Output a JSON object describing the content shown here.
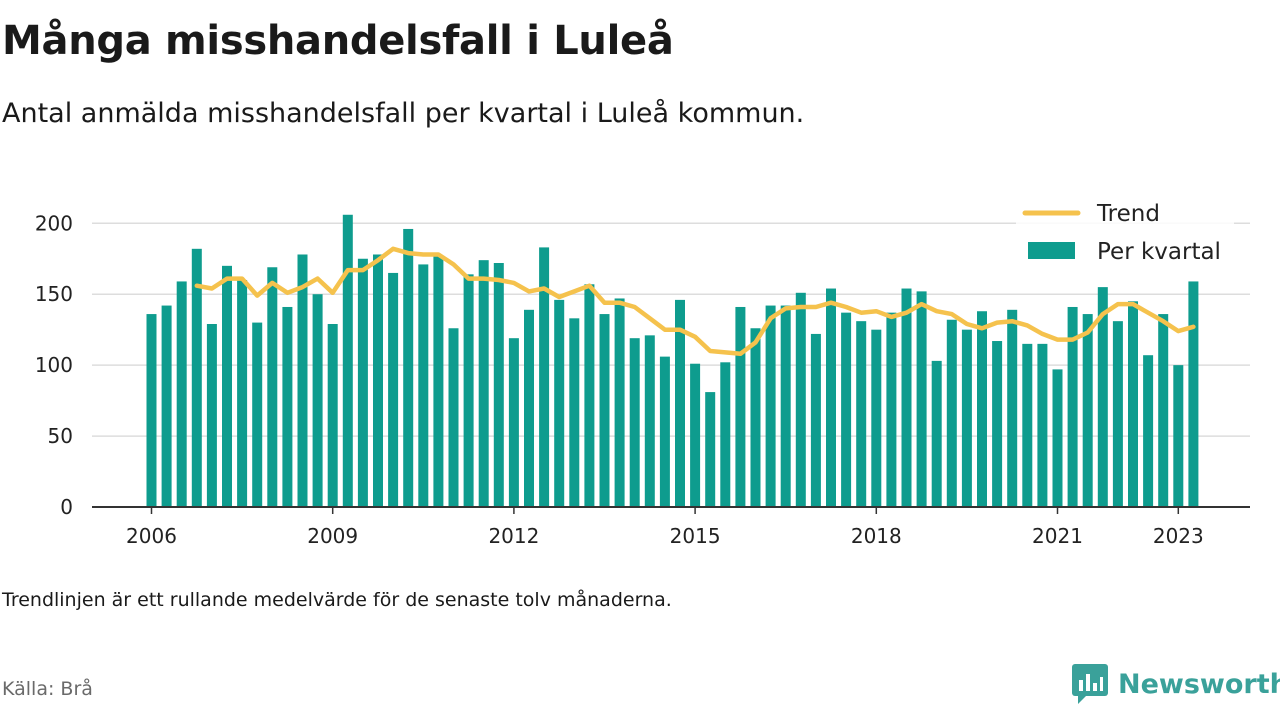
{
  "title": "Många misshandelsfall i Luleå",
  "subtitle": "Antal anmälda misshandelsfall per kvartal i Luleå kommun.",
  "note": "Trendlinjen är ett rullande medelvärde för de senaste tolv månaderna.",
  "source": "Källa: Brå",
  "brand": "Newsworthy",
  "colors": {
    "bar": "#0e9c8e",
    "trend": "#f5c24d",
    "grid": "#dddddd",
    "axis": "#333333"
  },
  "chart_data": {
    "type": "bar",
    "x_start": "2006 Q1",
    "x_ticks": [
      "2006",
      "2009",
      "2012",
      "2015",
      "2018",
      "2021",
      "2023"
    ],
    "ylim": [
      0,
      215
    ],
    "y_ticks": [
      0,
      50,
      100,
      150,
      200
    ],
    "legend": {
      "placement": "top-right",
      "entries": [
        "Trend",
        "Per kvartal"
      ]
    },
    "series": [
      {
        "name": "Per kvartal",
        "type": "bar",
        "values": [
          136,
          142,
          159,
          182,
          129,
          170,
          160,
          130,
          169,
          141,
          178,
          150,
          129,
          206,
          175,
          178,
          165,
          196,
          171,
          177,
          126,
          164,
          174,
          172,
          119,
          139,
          183,
          146,
          133,
          157,
          136,
          147,
          119,
          121,
          106,
          146,
          101,
          81,
          102,
          141,
          126,
          142,
          142,
          151,
          122,
          154,
          137,
          131,
          125,
          137,
          154,
          152,
          103,
          132,
          125,
          138,
          117,
          139,
          115,
          115,
          97,
          141,
          136,
          155,
          131,
          145,
          107,
          136,
          100,
          159
        ]
      },
      {
        "name": "Trend",
        "type": "line",
        "start_index": 3,
        "values": [
          156,
          154,
          161,
          161,
          149,
          158,
          151,
          155,
          161,
          151,
          167,
          167,
          174,
          182,
          179,
          178,
          178,
          171,
          161,
          161,
          160,
          158,
          152,
          154,
          148,
          152,
          156,
          144,
          144,
          141,
          133,
          125,
          125,
          120,
          110,
          109,
          108,
          116,
          133,
          140,
          141,
          141,
          144,
          141,
          137,
          138,
          134,
          137,
          143,
          138,
          136,
          129,
          126,
          130,
          131,
          128,
          122,
          118,
          118,
          123,
          136,
          143,
          143,
          137,
          131,
          124,
          127
        ]
      }
    ]
  }
}
